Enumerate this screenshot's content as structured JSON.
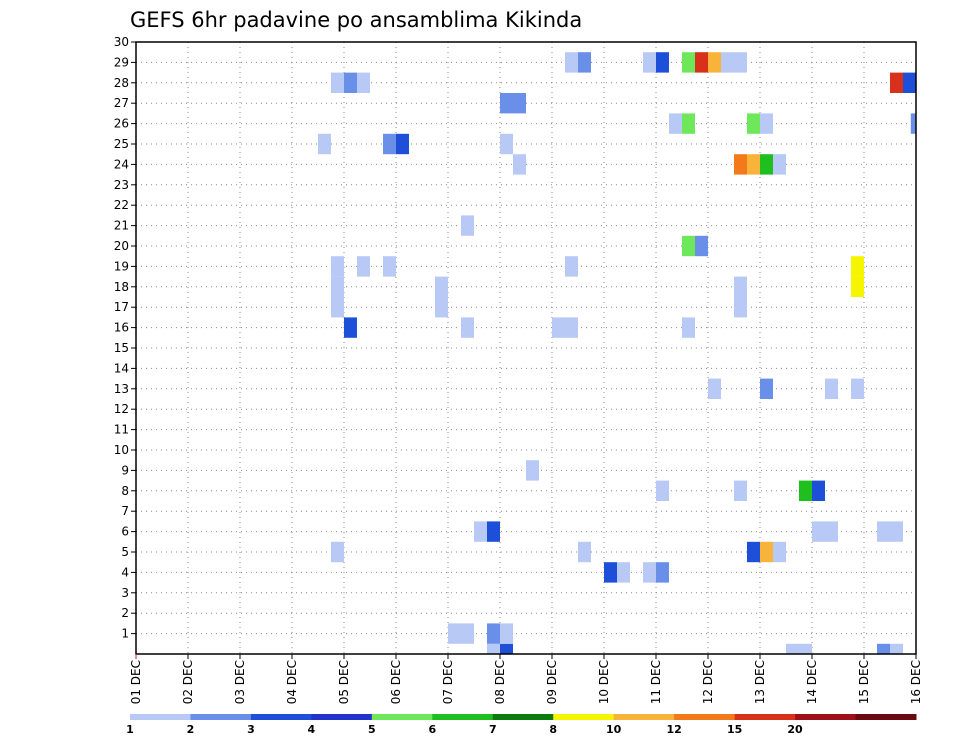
{
  "chart_data": {
    "type": "heatmap",
    "title": "GEFS 6hr padavine po ansamblima Kikinda",
    "xlabel": "",
    "ylabel": "",
    "x_tick_labels": [
      "01 DEC",
      "02 DEC",
      "03 DEC",
      "04 DEC",
      "05 DEC",
      "06 DEC",
      "07 DEC",
      "08 DEC",
      "09 DEC",
      "10 DEC",
      "11 DEC",
      "12 DEC",
      "13 DEC",
      "14 DEC",
      "15 DEC",
      "16 DEC"
    ],
    "xlim": [
      0,
      15
    ],
    "ylim": [
      0,
      30
    ],
    "y_ticks": [
      1,
      2,
      3,
      4,
      5,
      6,
      7,
      8,
      9,
      10,
      11,
      12,
      13,
      14,
      15,
      16,
      17,
      18,
      19,
      20,
      21,
      22,
      23,
      24,
      25,
      26,
      27,
      28,
      29,
      30
    ],
    "grid": true,
    "colorbar": {
      "levels": [
        "1",
        "2",
        "3",
        "4",
        "5",
        "6",
        "7",
        "8",
        "10",
        "12",
        "15",
        "20"
      ],
      "colors": [
        "#b8c9f5",
        "#6a8fe8",
        "#1d4fd8",
        "#2233cc",
        "#6ee85a",
        "#1ebf1e",
        "#0f7a0f",
        "#f5f500",
        "#f8b43a",
        "#f27a1a",
        "#d8301a",
        "#a0101a",
        "#6a0a10"
      ]
    },
    "cells": [
      {
        "x": 7.0,
        "y": 0,
        "w": 0.25,
        "c": "#1d4fd8"
      },
      {
        "x": 6.75,
        "y": 0,
        "w": 0.25,
        "c": "#b8c9f5"
      },
      {
        "x": 12.5,
        "y": 0,
        "w": 0.5,
        "c": "#b8c9f5"
      },
      {
        "x": 14.25,
        "y": 0,
        "w": 0.25,
        "c": "#6a8fe8"
      },
      {
        "x": 14.5,
        "y": 0,
        "w": 0.25,
        "c": "#b8c9f5"
      },
      {
        "x": 6.0,
        "y": 1,
        "w": 0.5,
        "c": "#b8c9f5"
      },
      {
        "x": 6.75,
        "y": 1,
        "w": 0.25,
        "c": "#6a8fe8"
      },
      {
        "x": 7.0,
        "y": 1,
        "w": 0.25,
        "c": "#b8c9f5"
      },
      {
        "x": 9.0,
        "y": 4,
        "w": 0.25,
        "c": "#1d4fd8"
      },
      {
        "x": 9.25,
        "y": 4,
        "w": 0.25,
        "c": "#b8c9f5"
      },
      {
        "x": 9.75,
        "y": 4,
        "w": 0.25,
        "c": "#b8c9f5"
      },
      {
        "x": 10.0,
        "y": 4,
        "w": 0.25,
        "c": "#6a8fe8"
      },
      {
        "x": 3.75,
        "y": 5,
        "w": 0.25,
        "c": "#b8c9f5"
      },
      {
        "x": 8.5,
        "y": 5,
        "w": 0.25,
        "c": "#b8c9f5"
      },
      {
        "x": 11.75,
        "y": 5,
        "w": 0.25,
        "c": "#1d4fd8"
      },
      {
        "x": 12.0,
        "y": 5,
        "w": 0.25,
        "c": "#f8b43a"
      },
      {
        "x": 12.25,
        "y": 5,
        "w": 0.25,
        "c": "#b8c9f5"
      },
      {
        "x": 6.5,
        "y": 6,
        "w": 0.25,
        "c": "#b8c9f5"
      },
      {
        "x": 6.75,
        "y": 6,
        "w": 0.25,
        "c": "#1d4fd8"
      },
      {
        "x": 13.0,
        "y": 6,
        "w": 0.5,
        "c": "#b8c9f5"
      },
      {
        "x": 14.25,
        "y": 6,
        "w": 0.5,
        "c": "#b8c9f5"
      },
      {
        "x": 10.0,
        "y": 8,
        "w": 0.25,
        "c": "#b8c9f5"
      },
      {
        "x": 11.5,
        "y": 8,
        "w": 0.25,
        "c": "#b8c9f5"
      },
      {
        "x": 12.75,
        "y": 8,
        "w": 0.25,
        "c": "#1ebf1e"
      },
      {
        "x": 13.0,
        "y": 8,
        "w": 0.25,
        "c": "#1d4fd8"
      },
      {
        "x": 7.5,
        "y": 9,
        "w": 0.25,
        "c": "#b8c9f5"
      },
      {
        "x": 11.0,
        "y": 13,
        "w": 0.25,
        "c": "#b8c9f5"
      },
      {
        "x": 12.0,
        "y": 13,
        "w": 0.25,
        "c": "#6a8fe8"
      },
      {
        "x": 13.25,
        "y": 13,
        "w": 0.25,
        "c": "#b8c9f5"
      },
      {
        "x": 13.75,
        "y": 13,
        "w": 0.25,
        "c": "#b8c9f5"
      },
      {
        "x": 4.0,
        "y": 16,
        "w": 0.25,
        "c": "#1d4fd8"
      },
      {
        "x": 6.25,
        "y": 16,
        "w": 0.25,
        "c": "#b8c9f5"
      },
      {
        "x": 8.0,
        "y": 16,
        "w": 0.5,
        "c": "#b8c9f5"
      },
      {
        "x": 10.5,
        "y": 16,
        "w": 0.25,
        "c": "#b8c9f5"
      },
      {
        "x": 3.75,
        "y": 17,
        "w": 0.25,
        "c": "#b8c9f5"
      },
      {
        "x": 5.75,
        "y": 17,
        "w": 0.25,
        "c": "#b8c9f5"
      },
      {
        "x": 11.5,
        "y": 17,
        "w": 0.25,
        "c": "#b8c9f5"
      },
      {
        "x": 3.75,
        "y": 18,
        "w": 0.25,
        "c": "#b8c9f5"
      },
      {
        "x": 5.75,
        "y": 18,
        "w": 0.25,
        "c": "#b8c9f5"
      },
      {
        "x": 11.5,
        "y": 18,
        "w": 0.25,
        "c": "#b8c9f5"
      },
      {
        "x": 13.75,
        "y": 18,
        "w": 0.25,
        "c": "#f5f500"
      },
      {
        "x": 3.75,
        "y": 19,
        "w": 0.25,
        "c": "#b8c9f5"
      },
      {
        "x": 4.25,
        "y": 19,
        "w": 0.25,
        "c": "#b8c9f5"
      },
      {
        "x": 4.75,
        "y": 19,
        "w": 0.25,
        "c": "#b8c9f5"
      },
      {
        "x": 8.25,
        "y": 19,
        "w": 0.25,
        "c": "#b8c9f5"
      },
      {
        "x": 13.75,
        "y": 19,
        "w": 0.25,
        "c": "#f5f500"
      },
      {
        "x": 10.5,
        "y": 20,
        "w": 0.25,
        "c": "#6ee85a"
      },
      {
        "x": 10.75,
        "y": 20,
        "w": 0.25,
        "c": "#6a8fe8"
      },
      {
        "x": 6.25,
        "y": 21,
        "w": 0.25,
        "c": "#b8c9f5"
      },
      {
        "x": 7.25,
        "y": 24,
        "w": 0.25,
        "c": "#b8c9f5"
      },
      {
        "x": 11.5,
        "y": 24,
        "w": 0.25,
        "c": "#f27a1a"
      },
      {
        "x": 11.75,
        "y": 24,
        "w": 0.25,
        "c": "#f8b43a"
      },
      {
        "x": 12.0,
        "y": 24,
        "w": 0.25,
        "c": "#1ebf1e"
      },
      {
        "x": 12.25,
        "y": 24,
        "w": 0.25,
        "c": "#b8c9f5"
      },
      {
        "x": 3.5,
        "y": 25,
        "w": 0.25,
        "c": "#b8c9f5"
      },
      {
        "x": 4.75,
        "y": 25,
        "w": 0.25,
        "c": "#6a8fe8"
      },
      {
        "x": 5.0,
        "y": 25,
        "w": 0.25,
        "c": "#1d4fd8"
      },
      {
        "x": 7.0,
        "y": 25,
        "w": 0.25,
        "c": "#b8c9f5"
      },
      {
        "x": 10.25,
        "y": 26,
        "w": 0.25,
        "c": "#b8c9f5"
      },
      {
        "x": 10.5,
        "y": 26,
        "w": 0.25,
        "c": "#6ee85a"
      },
      {
        "x": 11.75,
        "y": 26,
        "w": 0.25,
        "c": "#6ee85a"
      },
      {
        "x": 12.0,
        "y": 26,
        "w": 0.25,
        "c": "#b8c9f5"
      },
      {
        "x": 14.9,
        "y": 26,
        "w": 0.1,
        "c": "#6a8fe8"
      },
      {
        "x": 7.0,
        "y": 27,
        "w": 0.5,
        "c": "#6a8fe8"
      },
      {
        "x": 3.75,
        "y": 28,
        "w": 0.25,
        "c": "#b8c9f5"
      },
      {
        "x": 4.0,
        "y": 28,
        "w": 0.25,
        "c": "#6a8fe8"
      },
      {
        "x": 4.25,
        "y": 28,
        "w": 0.25,
        "c": "#b8c9f5"
      },
      {
        "x": 14.5,
        "y": 28,
        "w": 0.25,
        "c": "#d8301a"
      },
      {
        "x": 14.75,
        "y": 28,
        "w": 0.25,
        "c": "#1d4fd8"
      },
      {
        "x": 8.25,
        "y": 29,
        "w": 0.25,
        "c": "#b8c9f5"
      },
      {
        "x": 8.5,
        "y": 29,
        "w": 0.25,
        "c": "#6a8fe8"
      },
      {
        "x": 9.75,
        "y": 29,
        "w": 0.25,
        "c": "#b8c9f5"
      },
      {
        "x": 10.0,
        "y": 29,
        "w": 0.25,
        "c": "#1d4fd8"
      },
      {
        "x": 10.5,
        "y": 29,
        "w": 0.25,
        "c": "#6ee85a"
      },
      {
        "x": 10.75,
        "y": 29,
        "w": 0.25,
        "c": "#d8301a"
      },
      {
        "x": 11.0,
        "y": 29,
        "w": 0.25,
        "c": "#f8b43a"
      },
      {
        "x": 11.25,
        "y": 29,
        "w": 0.5,
        "c": "#b8c9f5"
      }
    ]
  }
}
